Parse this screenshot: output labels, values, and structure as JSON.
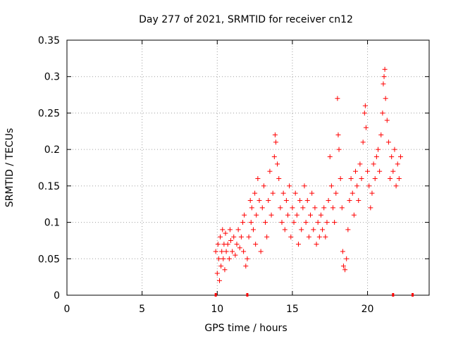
{
  "chart_data": {
    "type": "scatter",
    "title": "Day 277 of 2021, SRMTID for receiver cn12",
    "xlabel": "GPS time / hours",
    "ylabel": "SRMTID / TECUs",
    "xlim": [
      0,
      24.1
    ],
    "ylim": [
      0,
      0.35
    ],
    "x_ticks": [
      0,
      5,
      10,
      15,
      20
    ],
    "x_tick_labels": [
      "0",
      "5",
      "10",
      "15",
      "20"
    ],
    "y_ticks": [
      0,
      0.05,
      0.1,
      0.15,
      0.2,
      0.25,
      0.3,
      0.35
    ],
    "y_tick_labels": [
      "0",
      "0.05",
      "0.1",
      "0.15",
      "0.2",
      "0.25",
      "0.3",
      "0.35"
    ],
    "grid": true,
    "marker": "+",
    "color": "#ff0000",
    "series": [
      {
        "name": "SRMTID",
        "points": [
          [
            9.9,
            0.06
          ],
          [
            10.0,
            0.03
          ],
          [
            10.05,
            0.07
          ],
          [
            10.1,
            0.05
          ],
          [
            10.15,
            0.02
          ],
          [
            10.2,
            0.08
          ],
          [
            10.25,
            0.04
          ],
          [
            10.3,
            0.06
          ],
          [
            10.35,
            0.09
          ],
          [
            10.4,
            0.05
          ],
          [
            10.45,
            0.07
          ],
          [
            10.5,
            0.035
          ],
          [
            10.55,
            0.085
          ],
          [
            10.6,
            0.06
          ],
          [
            10.7,
            0.07
          ],
          [
            10.8,
            0.05
          ],
          [
            10.85,
            0.09
          ],
          [
            10.9,
            0.075
          ],
          [
            11.0,
            0.06
          ],
          [
            11.1,
            0.08
          ],
          [
            11.2,
            0.055
          ],
          [
            11.3,
            0.07
          ],
          [
            11.4,
            0.09
          ],
          [
            11.5,
            0.065
          ],
          [
            11.6,
            0.08
          ],
          [
            11.7,
            0.1
          ],
          [
            11.75,
            0.06
          ],
          [
            11.8,
            0.11
          ],
          [
            11.9,
            0.04
          ],
          [
            12.0,
            0.05
          ],
          [
            12.1,
            0.08
          ],
          [
            12.2,
            0.13
          ],
          [
            12.25,
            0.1
          ],
          [
            12.3,
            0.12
          ],
          [
            12.4,
            0.09
          ],
          [
            12.5,
            0.14
          ],
          [
            12.55,
            0.07
          ],
          [
            12.6,
            0.11
          ],
          [
            12.7,
            0.16
          ],
          [
            12.8,
            0.13
          ],
          [
            12.9,
            0.06
          ],
          [
            13.0,
            0.12
          ],
          [
            13.1,
            0.15
          ],
          [
            13.2,
            0.1
          ],
          [
            13.3,
            0.08
          ],
          [
            13.4,
            0.13
          ],
          [
            13.5,
            0.17
          ],
          [
            13.6,
            0.11
          ],
          [
            13.7,
            0.14
          ],
          [
            13.8,
            0.19
          ],
          [
            13.85,
            0.22
          ],
          [
            13.9,
            0.21
          ],
          [
            14.0,
            0.18
          ],
          [
            14.1,
            0.16
          ],
          [
            14.2,
            0.12
          ],
          [
            14.3,
            0.1
          ],
          [
            14.4,
            0.14
          ],
          [
            14.5,
            0.09
          ],
          [
            14.6,
            0.13
          ],
          [
            14.7,
            0.11
          ],
          [
            14.8,
            0.15
          ],
          [
            14.9,
            0.08
          ],
          [
            15.0,
            0.12
          ],
          [
            15.1,
            0.1
          ],
          [
            15.2,
            0.14
          ],
          [
            15.3,
            0.11
          ],
          [
            15.4,
            0.07
          ],
          [
            15.5,
            0.13
          ],
          [
            15.6,
            0.09
          ],
          [
            15.7,
            0.12
          ],
          [
            15.8,
            0.15
          ],
          [
            15.9,
            0.1
          ],
          [
            16.0,
            0.13
          ],
          [
            16.1,
            0.08
          ],
          [
            16.2,
            0.11
          ],
          [
            16.3,
            0.14
          ],
          [
            16.4,
            0.09
          ],
          [
            16.5,
            0.12
          ],
          [
            16.6,
            0.07
          ],
          [
            16.7,
            0.1
          ],
          [
            16.8,
            0.08
          ],
          [
            16.9,
            0.11
          ],
          [
            17.0,
            0.09
          ],
          [
            17.1,
            0.12
          ],
          [
            17.2,
            0.08
          ],
          [
            17.3,
            0.1
          ],
          [
            17.4,
            0.13
          ],
          [
            17.5,
            0.19
          ],
          [
            17.6,
            0.15
          ],
          [
            17.7,
            0.12
          ],
          [
            17.8,
            0.1
          ],
          [
            17.9,
            0.14
          ],
          [
            18.0,
            0.27
          ],
          [
            18.05,
            0.22
          ],
          [
            18.1,
            0.2
          ],
          [
            18.2,
            0.16
          ],
          [
            18.3,
            0.12
          ],
          [
            18.35,
            0.06
          ],
          [
            18.4,
            0.04
          ],
          [
            18.5,
            0.035
          ],
          [
            18.6,
            0.05
          ],
          [
            18.7,
            0.09
          ],
          [
            18.8,
            0.13
          ],
          [
            18.9,
            0.16
          ],
          [
            19.0,
            0.14
          ],
          [
            19.1,
            0.11
          ],
          [
            19.2,
            0.17
          ],
          [
            19.3,
            0.15
          ],
          [
            19.4,
            0.13
          ],
          [
            19.5,
            0.18
          ],
          [
            19.6,
            0.16
          ],
          [
            19.7,
            0.21
          ],
          [
            19.8,
            0.25
          ],
          [
            19.85,
            0.26
          ],
          [
            19.9,
            0.23
          ],
          [
            20.0,
            0.17
          ],
          [
            20.1,
            0.15
          ],
          [
            20.2,
            0.12
          ],
          [
            20.3,
            0.14
          ],
          [
            20.4,
            0.18
          ],
          [
            20.5,
            0.16
          ],
          [
            20.6,
            0.19
          ],
          [
            20.7,
            0.2
          ],
          [
            20.8,
            0.17
          ],
          [
            20.9,
            0.22
          ],
          [
            21.0,
            0.25
          ],
          [
            21.05,
            0.29
          ],
          [
            21.1,
            0.3
          ],
          [
            21.15,
            0.31
          ],
          [
            21.2,
            0.27
          ],
          [
            21.3,
            0.24
          ],
          [
            21.4,
            0.21
          ],
          [
            21.5,
            0.16
          ],
          [
            21.6,
            0.19
          ],
          [
            21.7,
            0.17
          ],
          [
            21.8,
            0.2
          ],
          [
            21.9,
            0.15
          ],
          [
            22.0,
            0.18
          ],
          [
            22.1,
            0.16
          ],
          [
            22.2,
            0.19
          ]
        ]
      }
    ],
    "baseline_markers_x": [
      9.9,
      12.0,
      21.7,
      23.0
    ]
  }
}
